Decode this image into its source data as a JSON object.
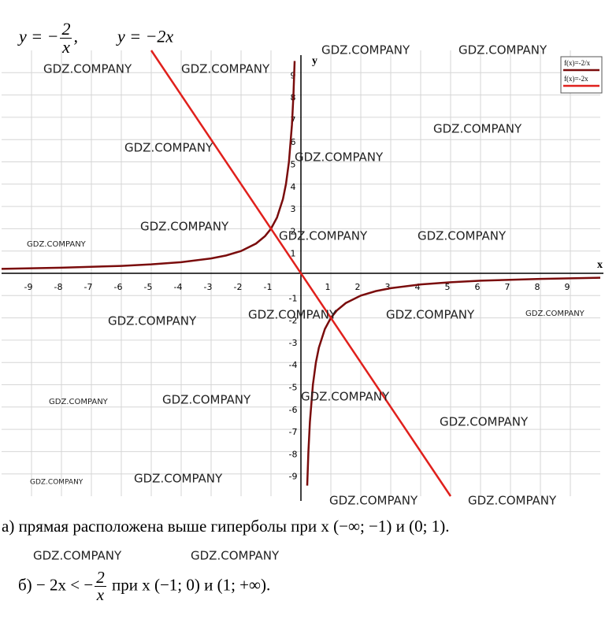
{
  "header": {
    "parts": [
      "y = −",
      "2",
      "x",
      ",",
      "y = −2x"
    ]
  },
  "chart_data": {
    "type": "line",
    "xlabel": "x",
    "ylabel": "y",
    "xlim": [
      -10,
      10
    ],
    "ylim": [
      -10,
      10
    ],
    "xticks": [
      -9,
      -8,
      -7,
      -6,
      -5,
      -4,
      -3,
      -2,
      -1,
      1,
      2,
      3,
      4,
      5,
      6,
      7,
      8,
      9
    ],
    "yticks": [
      -9,
      -8,
      -7,
      -6,
      -5,
      -4,
      -3,
      -2,
      -1,
      1,
      2,
      3,
      4,
      5,
      6,
      7,
      8,
      9
    ],
    "grid": true,
    "legend": "upper right",
    "series": [
      {
        "name": "f(x)=-2/x",
        "color": "#7a0c0c",
        "x": [
          -10,
          -8,
          -6,
          -5,
          -4,
          -3,
          -2.5,
          -2,
          -1.5,
          -1.2,
          -1,
          -0.8,
          -0.6,
          -0.5,
          -0.4,
          -0.3,
          -0.25,
          -0.21,
          0,
          0.21,
          0.25,
          0.3,
          0.4,
          0.5,
          0.6,
          0.8,
          1,
          1.2,
          1.5,
          2,
          2.5,
          3,
          4,
          5,
          6,
          8,
          10
        ],
        "values": [
          0.2,
          0.25,
          0.3333,
          0.4,
          0.5,
          0.6667,
          0.8,
          1,
          1.3333,
          1.6667,
          2,
          2.5,
          3.3333,
          4,
          5,
          6.6667,
          8,
          9.5238,
          null,
          -9.5238,
          -8,
          -6.6667,
          -5,
          -4,
          -3.3333,
          -2.5,
          -2,
          -1.6667,
          -1.3333,
          -1,
          -0.8,
          -0.6667,
          -0.5,
          -0.4,
          -0.3333,
          -0.25,
          -0.2
        ]
      },
      {
        "name": "f(x)=-2x",
        "color": "#e0201c",
        "x": [
          -5,
          5
        ],
        "values": [
          10,
          -10
        ]
      }
    ]
  },
  "answers": {
    "a": "а) прямая расположена выше гиперболы при x (−∞; −1) и (0; 1).",
    "b": {
      "before": "б) − 2x < −",
      "num": "2",
      "den": "x",
      "after": "при x (−1; 0) и (1; +∞)."
    }
  },
  "watermark": "GDZ.COMPANY"
}
